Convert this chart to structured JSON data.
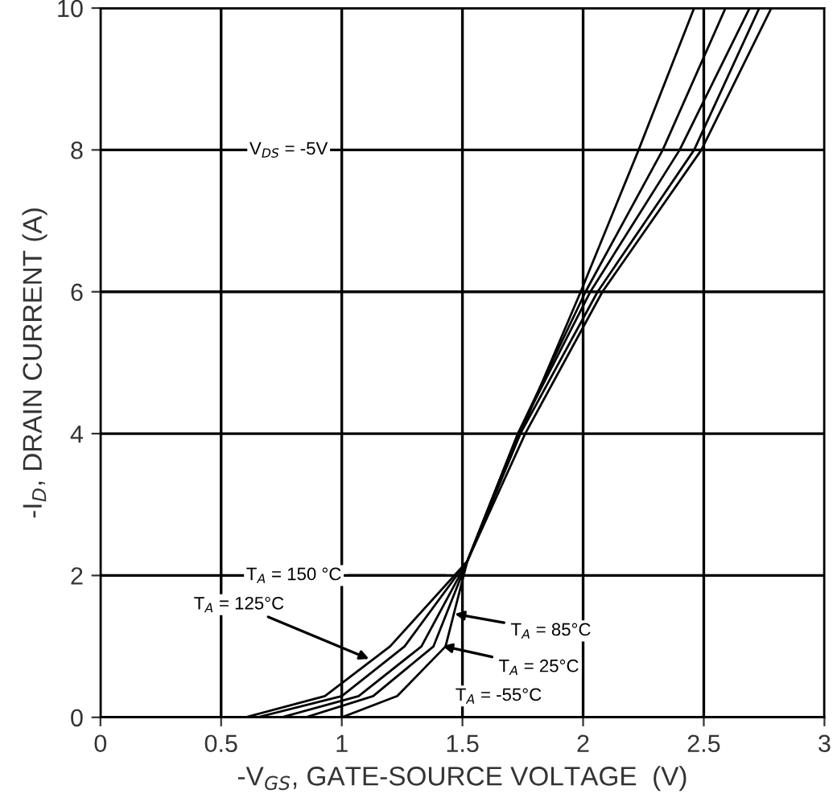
{
  "chart_data": {
    "type": "line",
    "xlabel": "-V$_{GS}$, GATE-SOURCE VOLTAGE  (V)",
    "ylabel": "-I$_{D}$, DRAIN CURRENT (A)",
    "xlim": [
      0,
      3
    ],
    "ylim": [
      0,
      10
    ],
    "xticks": [
      0,
      0.5,
      1,
      1.5,
      2,
      2.5,
      3
    ],
    "yticks": [
      0,
      2,
      4,
      6,
      8,
      10
    ],
    "grid": true,
    "line_style": "solid",
    "marker": "none",
    "series": [
      {
        "color": "#000000",
        "x": [
          1.0,
          1.23,
          1.43,
          1.52,
          1.74,
          1.99,
          2.23,
          2.46
        ],
        "values": [
          0,
          0.3,
          1.0,
          2.2,
          4,
          6,
          8,
          10
        ]
      },
      {
        "color": "#000000",
        "x": [
          0.85,
          1.13,
          1.38,
          1.52,
          1.73,
          2.01,
          2.33,
          2.59
        ],
        "values": [
          0,
          0.3,
          1.0,
          2.2,
          4,
          6,
          8,
          10
        ]
      },
      {
        "color": "#000000",
        "x": [
          0.75,
          1.07,
          1.33,
          1.52,
          1.73,
          2.03,
          2.4,
          2.69
        ],
        "values": [
          0,
          0.3,
          1.0,
          2.2,
          4,
          6,
          8,
          10
        ]
      },
      {
        "color": "#000000",
        "x": [
          0.65,
          1.0,
          1.26,
          1.52,
          1.74,
          2.06,
          2.46,
          2.73
        ],
        "values": [
          0,
          0.3,
          1.0,
          2.2,
          4,
          6,
          8,
          10
        ]
      },
      {
        "color": "#000000",
        "x": [
          0.6,
          0.93,
          1.2,
          1.52,
          1.76,
          2.08,
          2.49,
          2.78
        ],
        "values": [
          0,
          0.3,
          1.0,
          2.2,
          4,
          6,
          8,
          10
        ]
      }
    ],
    "annotations": [
      "V$_{DS}$ = -5V",
      {
        "text": "T$_{A}$ = 150 °C",
        "x": 1.45,
        "y": 2.0
      },
      {
        "text": "T$_{A}$ = 125°C",
        "x": 1.13,
        "y": 0.8
      },
      {
        "text": "T$_{A}$ = 85°C",
        "x": 1.45,
        "y": 1.47
      },
      {
        "text": "T$_{A}$ = 25°C",
        "x": 1.4,
        "y": 1.02
      },
      "T$_{A}$ = -55°C"
    ]
  }
}
